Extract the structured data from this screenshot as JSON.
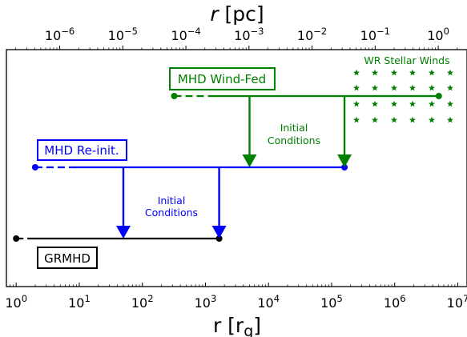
{
  "figure": {
    "top_axis": {
      "title": "r [pc]",
      "ticks": [
        {
          "exp": "−6",
          "value": 1e-06
        },
        {
          "exp": "−5",
          "value": 1e-05
        },
        {
          "exp": "−4",
          "value": 0.0001
        },
        {
          "exp": "−3",
          "value": 0.001
        },
        {
          "exp": "−2",
          "value": 0.01
        },
        {
          "exp": "−1",
          "value": 0.1
        },
        {
          "exp": "0",
          "value": 1
        }
      ]
    },
    "bottom_axis": {
      "title": "r [r",
      "title_sub": "g",
      "title_close": "]",
      "scale": "log",
      "range": [
        0.7,
        14000000
      ],
      "ticks": [
        {
          "exp": "0",
          "value": 1
        },
        {
          "exp": "1",
          "value": 10
        },
        {
          "exp": "2",
          "value": 100
        },
        {
          "exp": "3",
          "value": 1000
        },
        {
          "exp": "4",
          "value": 10000
        },
        {
          "exp": "5",
          "value": 100000
        },
        {
          "exp": "6",
          "value": 1000000
        },
        {
          "exp": "7",
          "value": 10000000
        }
      ]
    },
    "tick_base": "10",
    "colors": {
      "grmhd": "#000000",
      "reinit": "#0000ff",
      "windfed": "#008000"
    },
    "domains": {
      "grmhd": {
        "label": "GRMHD",
        "r_start": 1,
        "r_end": 1650
      },
      "reinit": {
        "label": "MHD Re-init.",
        "r_start": 2,
        "r_end": 160000
      },
      "windfed": {
        "label": "MHD Wind-Fed",
        "r_start": 320,
        "r_end": 5000000
      }
    },
    "arrows": {
      "reinit_to_grmhd": [
        50,
        1650
      ],
      "windfed_to_reinit": [
        5000,
        160000
      ]
    },
    "annotations": {
      "initial_conditions_blue": [
        "Initial",
        "Conditions"
      ],
      "initial_conditions_green": [
        "Initial",
        "Conditions"
      ],
      "wr_stellar_winds": "WR Stellar Winds"
    },
    "star_icon": "star-marker-icon"
  }
}
